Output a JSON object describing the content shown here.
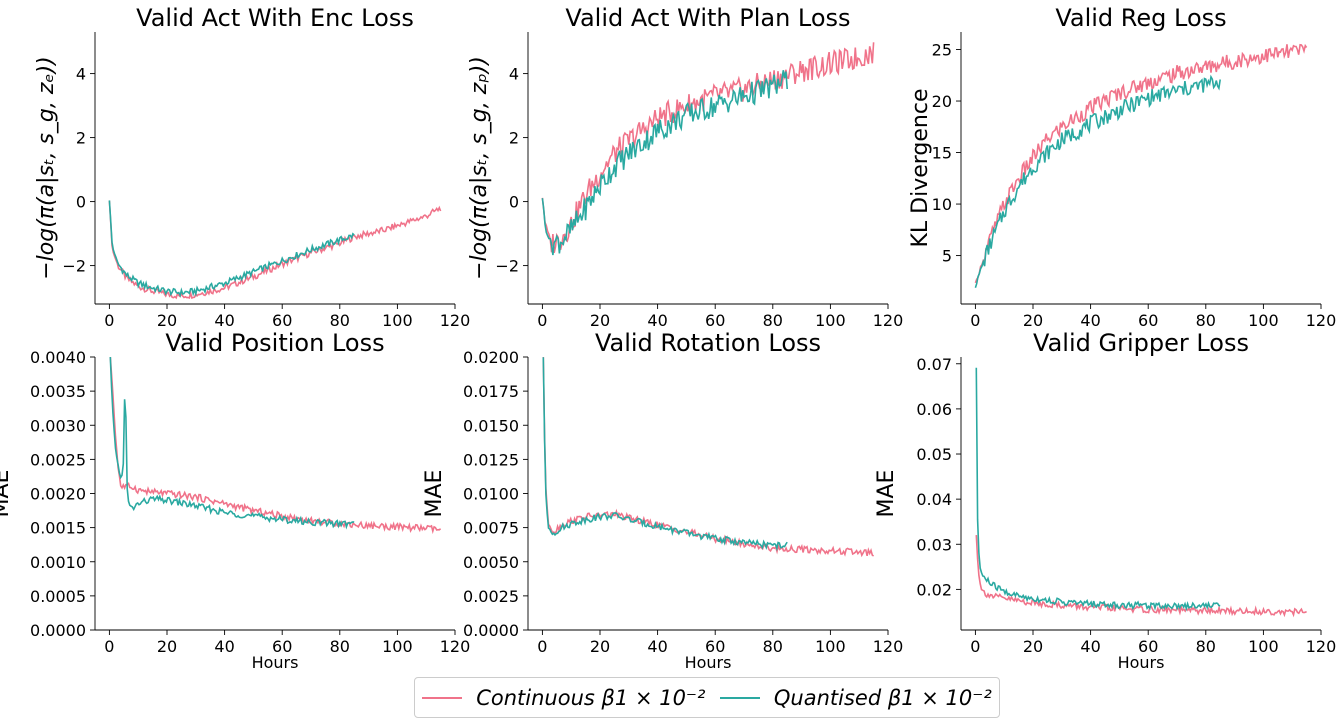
{
  "colors": {
    "continuous": "#f0738a",
    "quantised": "#2aa9a1"
  },
  "legend": {
    "continuous": "Continuous β1 × 10⁻²",
    "quantised": "Quantised β1 × 10⁻²"
  },
  "chart_data": [
    {
      "type": "line",
      "title": "Valid Act With Enc Loss",
      "xlabel": "",
      "ylabel": "−log(π(a|sₜ, s_g, zₑ))",
      "xlim": [
        -5,
        120
      ],
      "ylim": [
        -3.2,
        5.3
      ],
      "xticks": [
        0,
        20,
        40,
        60,
        80,
        100,
        120
      ],
      "yticks": [
        -2,
        0,
        2,
        4
      ],
      "ytick_decimals": 0,
      "series": [
        {
          "name": "Continuous β1 × 10⁻²",
          "color_key": "continuous",
          "x": [
            0,
            1,
            3,
            6,
            10,
            15,
            20,
            25,
            30,
            40,
            50,
            60,
            70,
            80,
            85,
            90,
            95,
            100,
            105,
            110,
            115
          ],
          "values": [
            0.05,
            -1.5,
            -2.0,
            -2.4,
            -2.65,
            -2.8,
            -2.9,
            -2.95,
            -2.9,
            -2.7,
            -2.35,
            -1.95,
            -1.6,
            -1.3,
            -1.1,
            -1.0,
            -0.9,
            -0.75,
            -0.6,
            -0.45,
            -0.2
          ]
        },
        {
          "name": "Quantised β1 × 10⁻²",
          "color_key": "quantised",
          "x": [
            0,
            1,
            3,
            6,
            10,
            15,
            20,
            25,
            30,
            40,
            50,
            60,
            70,
            80,
            85
          ],
          "values": [
            0.05,
            -1.4,
            -1.95,
            -2.3,
            -2.55,
            -2.7,
            -2.8,
            -2.85,
            -2.8,
            -2.55,
            -2.2,
            -1.85,
            -1.5,
            -1.2,
            -1.05
          ]
        }
      ]
    },
    {
      "type": "line",
      "title": "Valid Act With Plan Loss",
      "xlabel": "",
      "ylabel": "−log(π(a|sₜ, s_g, zₚ))",
      "xlim": [
        -5,
        120
      ],
      "ylim": [
        -3.2,
        5.3
      ],
      "xticks": [
        0,
        20,
        40,
        60,
        80,
        100,
        120
      ],
      "yticks": [
        -2,
        0,
        2,
        4
      ],
      "ytick_decimals": 0,
      "series": [
        {
          "name": "Continuous β1 × 10⁻²",
          "color_key": "continuous",
          "x": [
            0,
            1,
            3,
            6,
            10,
            15,
            20,
            25,
            30,
            40,
            50,
            60,
            70,
            80,
            90,
            100,
            110,
            115
          ],
          "values": [
            0.15,
            -0.7,
            -1.3,
            -1.2,
            -0.7,
            0.2,
            0.9,
            1.5,
            1.9,
            2.6,
            3.0,
            3.3,
            3.5,
            3.8,
            4.1,
            4.3,
            4.5,
            4.7
          ]
        },
        {
          "name": "Quantised β1 × 10⁻²",
          "color_key": "quantised",
          "x": [
            0,
            1,
            3,
            6,
            10,
            15,
            20,
            25,
            30,
            40,
            50,
            60,
            70,
            80,
            85
          ],
          "values": [
            0.15,
            -0.8,
            -1.3,
            -1.25,
            -0.9,
            -0.2,
            0.5,
            1.1,
            1.5,
            2.2,
            2.7,
            3.0,
            3.3,
            3.6,
            3.8
          ]
        }
      ]
    },
    {
      "type": "line",
      "title": "Valid Reg Loss",
      "xlabel": "",
      "ylabel": "KL Divergence",
      "xlim": [
        -5,
        120
      ],
      "ylim": [
        0.3,
        26.7
      ],
      "xticks": [
        0,
        20,
        40,
        60,
        80,
        100,
        120
      ],
      "yticks": [
        5,
        10,
        15,
        20,
        25
      ],
      "ytick_decimals": 0,
      "series": [
        {
          "name": "Continuous β1 × 10⁻²",
          "color_key": "continuous",
          "x": [
            0,
            2,
            5,
            10,
            15,
            20,
            25,
            30,
            40,
            50,
            60,
            70,
            80,
            90,
            100,
            110,
            115
          ],
          "values": [
            2.2,
            4.0,
            6.5,
            10.0,
            12.5,
            14.5,
            16.3,
            17.5,
            19.3,
            20.8,
            21.8,
            22.7,
            23.3,
            23.9,
            24.4,
            24.8,
            25.0
          ]
        },
        {
          "name": "Quantised β1 × 10⁻²",
          "color_key": "quantised",
          "x": [
            0,
            2,
            5,
            10,
            15,
            20,
            25,
            30,
            40,
            50,
            60,
            70,
            80,
            85
          ],
          "values": [
            2.0,
            3.8,
            6.0,
            9.3,
            11.7,
            13.6,
            15.0,
            16.2,
            17.8,
            19.1,
            20.3,
            21.0,
            21.6,
            21.9
          ]
        }
      ]
    },
    {
      "type": "line",
      "title": "Valid Position Loss",
      "xlabel": "Hours",
      "ylabel": "MAE",
      "xlim": [
        -5,
        120
      ],
      "ylim": [
        0,
        0.004
      ],
      "xticks": [
        0,
        20,
        40,
        60,
        80,
        100,
        120
      ],
      "yticks": [
        0,
        0.0005,
        0.001,
        0.0015,
        0.002,
        0.0025,
        0.003,
        0.0035,
        0.004
      ],
      "ytick_decimals": 4,
      "series": [
        {
          "name": "Continuous β1 × 10⁻²",
          "color_key": "continuous",
          "x": [
            0.3,
            1,
            2,
            3,
            4,
            6,
            8,
            10,
            15,
            20,
            30,
            40,
            50,
            60,
            70,
            80,
            90,
            100,
            110,
            115
          ],
          "values": [
            0.004,
            0.0036,
            0.0029,
            0.0024,
            0.0021,
            0.0021,
            0.0021,
            0.00205,
            0.00202,
            0.002,
            0.00195,
            0.00185,
            0.00175,
            0.00167,
            0.0016,
            0.00156,
            0.00153,
            0.00151,
            0.00149,
            0.00147
          ]
        },
        {
          "name": "Quantised β1 × 10⁻²",
          "color_key": "quantised",
          "x": [
            0.3,
            1,
            2,
            3,
            4,
            5,
            5.5,
            6,
            7,
            8,
            10,
            15,
            20,
            30,
            40,
            50,
            60,
            70,
            80,
            85
          ],
          "values": [
            0.004,
            0.0033,
            0.0027,
            0.0024,
            0.0022,
            0.0025,
            0.004,
            0.0021,
            0.0018,
            0.00178,
            0.00185,
            0.00192,
            0.0019,
            0.00182,
            0.00172,
            0.00167,
            0.00162,
            0.00158,
            0.00156,
            0.00155
          ]
        }
      ]
    },
    {
      "type": "line",
      "title": "Valid Rotation Loss",
      "xlabel": "Hours",
      "ylabel": "MAE",
      "xlim": [
        -5,
        120
      ],
      "ylim": [
        0,
        0.02
      ],
      "xticks": [
        0,
        20,
        40,
        60,
        80,
        100,
        120
      ],
      "yticks": [
        0,
        0.0025,
        0.005,
        0.0075,
        0.01,
        0.0125,
        0.015,
        0.0175,
        0.02
      ],
      "ytick_decimals": 4,
      "series": [
        {
          "name": "Continuous β1 × 10⁻²",
          "color_key": "continuous",
          "x": [
            0.3,
            1,
            2,
            4,
            6,
            10,
            15,
            20,
            25,
            30,
            40,
            50,
            60,
            70,
            80,
            90,
            100,
            110,
            115
          ],
          "values": [
            0.02,
            0.011,
            0.0078,
            0.0072,
            0.0076,
            0.008,
            0.0083,
            0.0084,
            0.0085,
            0.0082,
            0.0077,
            0.0072,
            0.0067,
            0.0063,
            0.006,
            0.0059,
            0.0058,
            0.0057,
            0.0056
          ]
        },
        {
          "name": "Quantised β1 × 10⁻²",
          "color_key": "quantised",
          "x": [
            0.3,
            1,
            2,
            4,
            6,
            10,
            15,
            20,
            25,
            30,
            40,
            50,
            60,
            70,
            80,
            85
          ],
          "values": [
            0.02,
            0.0105,
            0.0075,
            0.0071,
            0.0074,
            0.0078,
            0.0081,
            0.0083,
            0.0084,
            0.0081,
            0.0076,
            0.0071,
            0.0067,
            0.0064,
            0.0062,
            0.0062
          ]
        }
      ]
    },
    {
      "type": "line",
      "title": "Valid Gripper Loss",
      "xlabel": "Hours",
      "ylabel": "MAE",
      "xlim": [
        -5,
        120
      ],
      "ylim": [
        0.011,
        0.0715
      ],
      "xticks": [
        0,
        20,
        40,
        60,
        80,
        100,
        120
      ],
      "yticks": [
        0.02,
        0.03,
        0.04,
        0.05,
        0.06,
        0.07
      ],
      "ytick_decimals": 2,
      "series": [
        {
          "name": "Continuous β1 × 10⁻²",
          "color_key": "continuous",
          "x": [
            0.3,
            1,
            2,
            4,
            6,
            10,
            15,
            20,
            30,
            40,
            50,
            60,
            70,
            80,
            90,
            100,
            110,
            115
          ],
          "values": [
            0.032,
            0.024,
            0.02,
            0.019,
            0.0185,
            0.018,
            0.0175,
            0.017,
            0.0165,
            0.016,
            0.0158,
            0.0155,
            0.0154,
            0.0153,
            0.0152,
            0.0151,
            0.015,
            0.015
          ]
        },
        {
          "name": "Quantised β1 × 10⁻²",
          "color_key": "quantised",
          "x": [
            0.3,
            0.8,
            1.5,
            2.5,
            4,
            6,
            10,
            15,
            20,
            30,
            40,
            50,
            60,
            70,
            80,
            85
          ],
          "values": [
            0.069,
            0.032,
            0.025,
            0.023,
            0.022,
            0.021,
            0.0195,
            0.0185,
            0.018,
            0.0172,
            0.0168,
            0.0165,
            0.0165,
            0.0164,
            0.0165,
            0.0165
          ]
        }
      ]
    }
  ]
}
